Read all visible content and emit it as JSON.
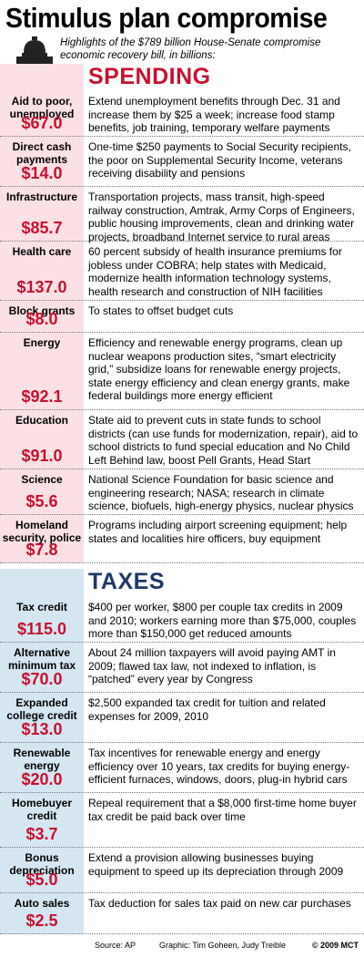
{
  "title": "Stimulus plan compromise",
  "subtitle": "Highlights of the $789 billion House-Senate compromise economic recovery bill, in billions:",
  "spending": {
    "heading": "SPENDING",
    "items": [
      {
        "label": "Aid to poor, unemployed",
        "amount": "$67.0",
        "description": "Extend unemployment benefits through Dec. 31 and increase them by $25 a week; increase food stamp benefits, job training, temporary welfare payments"
      },
      {
        "label": "Direct cash payments",
        "amount": "$14.0",
        "description": "One-time $250 payments to Social Security recipients, the poor on Supplemental Security Income, veterans receiving disability and pensions"
      },
      {
        "label": "Infrastructure",
        "amount": "$85.7",
        "description": "Transportation projects, mass transit, high-speed railway construction, Amtrak, Army Corps of Engineers, public housing improvements, clean and drinking water projects, broadband Internet service to rural areas"
      },
      {
        "label": "Health care",
        "amount": "$137.0",
        "description": "60 percent subsidy of health insurance premiums for jobless under COBRA; help states with Medicaid, modernize health information technology systems, health research and construction of NIH facilities"
      },
      {
        "label": "Block grants",
        "amount": "$8.0",
        "description": "To states to offset budget cuts"
      },
      {
        "label": "Energy",
        "amount": "$92.1",
        "description": "Efficiency and renewable energy programs, clean up nuclear weapons production sites, “smart electricity grid,” subsidize loans for renewable energy projects, state energy efficiency and clean energy grants, make federal buildings more energy efficient"
      },
      {
        "label": "Education",
        "amount": "$91.0",
        "description": "State aid to prevent cuts in state funds to school districts (can use funds for modernization, repair), aid to school districts to fund special education and No Child Left Behind law, boost Pell Grants, Head Start"
      },
      {
        "label": "Science",
        "amount": "$5.6",
        "description": "National Science Foundation for basic science and engineering research; NASA; research in climate science, biofuels, high-energy physics, nuclear physics"
      },
      {
        "label": "Homeland security, police",
        "amount": "$7.8",
        "description": "Programs including airport screening equipment; help states and localities hire officers, buy equipment"
      }
    ]
  },
  "taxes": {
    "heading": "TAXES",
    "items": [
      {
        "label": "Tax credit",
        "amount": "$115.0",
        "description": "$400 per worker, $800 per couple tax credits in 2009 and 2010; workers earning more than $75,000, couples more than $150,000 get reduced amounts"
      },
      {
        "label": "Alternative minimum tax",
        "amount": "$70.0",
        "description": "About 24 million taxpayers will avoid paying AMT in 2009; flawed tax law, not indexed to inflation, is “patched” every year by Congress"
      },
      {
        "label": "Expanded college credit",
        "amount": "$13.0",
        "description": "$2,500 expanded tax credit for tuition and related expenses for 2009, 2010"
      },
      {
        "label": "Renewable energy",
        "amount": "$20.0",
        "description": "Tax incentives for renewable energy and energy efficiency over 10 years, tax credits for buying energy-efficient furnaces, windows, doors, plug-in hybrid cars"
      },
      {
        "label": "Homebuyer credit",
        "amount": "$3.7",
        "description": "Repeal requirement that a $8,000 first-time home buyer tax credit be paid back over time"
      },
      {
        "label": "Bonus depreciation",
        "amount": "$5.0",
        "description": "Extend a provision allowing businesses buying equipment to speed up its depreciation through 2009"
      },
      {
        "label": "Auto sales",
        "amount": "$2.5",
        "description": "Tax deduction for sales tax paid on new car purchases"
      }
    ]
  },
  "footer": {
    "source": "Source: AP",
    "graphic": "Graphic: Tim Goheen, Judy Treible",
    "copyright": "© 2009 MCT"
  }
}
